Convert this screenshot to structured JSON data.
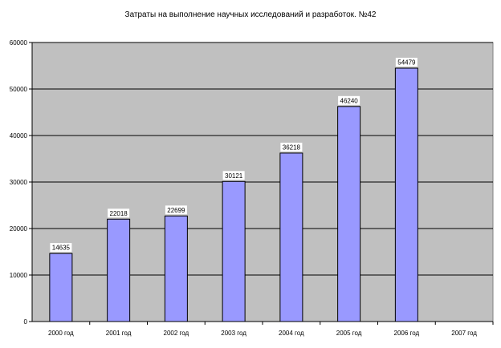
{
  "chart_data": {
    "type": "bar",
    "title": "Затраты на выполнение научных исследований и разработок. №42",
    "categories": [
      "2000 год",
      "2001 год",
      "2002 год",
      "2003 год",
      "2004 год",
      "2005 год",
      "2006 год",
      "2007 год"
    ],
    "values": [
      14635,
      22018,
      22699,
      30121,
      36218,
      46240,
      54479,
      null
    ],
    "data_labels": [
      "14635",
      "22018",
      "22699",
      "30121",
      "36218",
      "46240",
      "54479",
      ""
    ],
    "ylim": [
      0,
      60000
    ],
    "yticks": [
      0,
      10000,
      20000,
      30000,
      40000,
      50000,
      60000
    ],
    "ytick_labels": [
      "0",
      "10000",
      "20000",
      "30000",
      "40000",
      "50000",
      "60000"
    ],
    "xlabel": "",
    "ylabel": "",
    "grid": true,
    "legend": "none",
    "colors": {
      "plot_background": "#c0c0c0",
      "bar_fill": "#9999ff",
      "bar_stroke": "#000000",
      "gridline": "#000000"
    }
  }
}
